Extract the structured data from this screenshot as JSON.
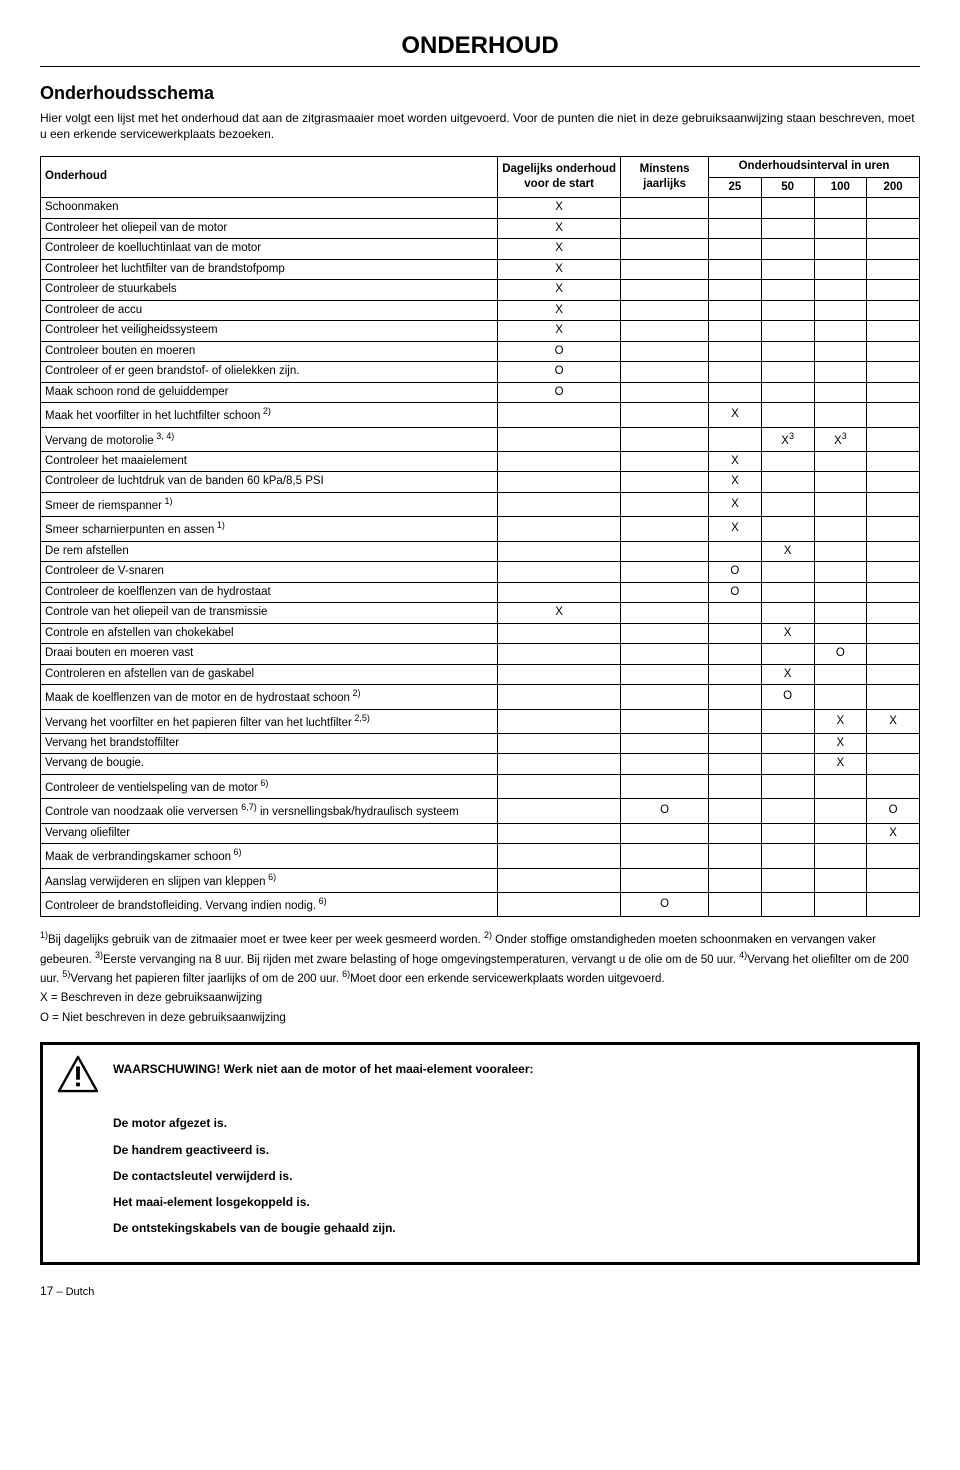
{
  "page": {
    "title": "ONDERHOUD",
    "section": "Onderhoudsschema",
    "intro": "Hier volgt een lijst met het onderhoud dat aan de zitgrasmaaier moet worden uitgevoerd. Voor de punten die niet in deze gebruiksaanwijzing staan beschreven, moet u een erkende servicewerkplaats bezoeken."
  },
  "table": {
    "headers": {
      "col1": "Onderhoud",
      "col2": "Dagelijks onderhoud voor de start",
      "col3": "Minstens jaarlijks",
      "col4": "Onderhoudsinterval in uren",
      "int25": "25",
      "int50": "50",
      "int100": "100",
      "int200": "200"
    },
    "rows": [
      {
        "name": "Schoonmaken",
        "daily": "X",
        "yearly": "",
        "i25": "",
        "i50": "",
        "i100": "",
        "i200": ""
      },
      {
        "name": "Controleer het oliepeil van de motor",
        "daily": "X",
        "yearly": "",
        "i25": "",
        "i50": "",
        "i100": "",
        "i200": ""
      },
      {
        "name": "Controleer de koelluchtinlaat van de motor",
        "daily": "X",
        "yearly": "",
        "i25": "",
        "i50": "",
        "i100": "",
        "i200": ""
      },
      {
        "name": "Controleer het luchtfilter van de brandstofpomp",
        "daily": "X",
        "yearly": "",
        "i25": "",
        "i50": "",
        "i100": "",
        "i200": ""
      },
      {
        "name": "Controleer de stuurkabels",
        "daily": "X",
        "yearly": "",
        "i25": "",
        "i50": "",
        "i100": "",
        "i200": ""
      },
      {
        "name": "Controleer de accu",
        "daily": "X",
        "yearly": "",
        "i25": "",
        "i50": "",
        "i100": "",
        "i200": ""
      },
      {
        "name": "Controleer het veiligheidssysteem",
        "daily": "X",
        "yearly": "",
        "i25": "",
        "i50": "",
        "i100": "",
        "i200": ""
      },
      {
        "name": "Controleer bouten en moeren",
        "daily": "O",
        "yearly": "",
        "i25": "",
        "i50": "",
        "i100": "",
        "i200": ""
      },
      {
        "name": "Controleer of er geen brandstof- of olielekken zijn.",
        "daily": "O",
        "yearly": "",
        "i25": "",
        "i50": "",
        "i100": "",
        "i200": ""
      },
      {
        "name": "Maak schoon rond de geluiddemper",
        "daily": "O",
        "yearly": "",
        "i25": "",
        "i50": "",
        "i100": "",
        "i200": ""
      },
      {
        "name": "Maak het voorfilter in het luchtfilter schoon",
        "sup": "2)",
        "daily": "",
        "yearly": "",
        "i25": "X",
        "i50": "",
        "i100": "",
        "i200": ""
      },
      {
        "name": "Vervang de motorolie",
        "sup": "3, 4)",
        "daily": "",
        "yearly": "",
        "i25": "",
        "i50": "X",
        "i50sup": "3",
        "i100": "X",
        "i100sup": "3",
        "i200": ""
      },
      {
        "name": "Controleer het maaielement",
        "daily": "",
        "yearly": "",
        "i25": "X",
        "i50": "",
        "i100": "",
        "i200": ""
      },
      {
        "name": "Controleer de luchtdruk van de banden 60 kPa/8,5 PSI",
        "daily": "",
        "yearly": "",
        "i25": "X",
        "i50": "",
        "i100": "",
        "i200": ""
      },
      {
        "name": "Smeer de riemspanner",
        "sup": "1)",
        "daily": "",
        "yearly": "",
        "i25": "X",
        "i50": "",
        "i100": "",
        "i200": ""
      },
      {
        "name": "Smeer scharnierpunten en assen",
        "sup": "1)",
        "daily": "",
        "yearly": "",
        "i25": "X",
        "i50": "",
        "i100": "",
        "i200": ""
      },
      {
        "name": "De rem afstellen",
        "daily": "",
        "yearly": "",
        "i25": "",
        "i50": "X",
        "i100": "",
        "i200": ""
      },
      {
        "name": "Controleer de V-snaren",
        "daily": "",
        "yearly": "",
        "i25": "O",
        "i50": "",
        "i100": "",
        "i200": ""
      },
      {
        "name": "Controleer de koelflenzen van de hydrostaat",
        "daily": "",
        "yearly": "",
        "i25": "O",
        "i50": "",
        "i100": "",
        "i200": ""
      },
      {
        "name": "Controle van het oliepeil van de transmissie",
        "daily": "X",
        "yearly": "",
        "i25": "",
        "i50": "",
        "i100": "",
        "i200": ""
      },
      {
        "name": "Controle en afstellen van chokekabel",
        "daily": "",
        "yearly": "",
        "i25": "",
        "i50": "X",
        "i100": "",
        "i200": ""
      },
      {
        "name": "Draai bouten en moeren vast",
        "daily": "",
        "yearly": "",
        "i25": "",
        "i50": "",
        "i100": "O",
        "i200": ""
      },
      {
        "name": "Controleren en afstellen van de gaskabel",
        "daily": "",
        "yearly": "",
        "i25": "",
        "i50": "X",
        "i100": "",
        "i200": ""
      },
      {
        "name": "Maak de koelflenzen van de motor en de hydrostaat schoon",
        "sup": "2)",
        "daily": "",
        "yearly": "",
        "i25": "",
        "i50": "O",
        "i100": "",
        "i200": ""
      },
      {
        "name": "Vervang het voorfilter en het papieren filter van het luchtfilter",
        "sup": "2,5)",
        "daily": "",
        "yearly": "",
        "i25": "",
        "i50": "",
        "i100": "X",
        "i200": "X"
      },
      {
        "name": "Vervang het brandstoffilter",
        "daily": "",
        "yearly": "",
        "i25": "",
        "i50": "",
        "i100": "X",
        "i200": ""
      },
      {
        "name": "Vervang de bougie.",
        "daily": "",
        "yearly": "",
        "i25": "",
        "i50": "",
        "i100": "X",
        "i200": ""
      },
      {
        "name": "Controleer de ventielspeling van de motor",
        "sup": "6)",
        "daily": "",
        "yearly": "",
        "i25": "",
        "i50": "",
        "i100": "",
        "i200": ""
      },
      {
        "name": "Controle van noodzaak olie verversen 6,7) in versnellingsbak/hydraulisch systeem",
        "name_html": true,
        "sup": "",
        "daily": "",
        "yearly": "O",
        "i25": "",
        "i50": "",
        "i100": "",
        "i200": "O"
      },
      {
        "name": "Vervang oliefilter",
        "daily": "",
        "yearly": "",
        "i25": "",
        "i50": "",
        "i100": "",
        "i200": "X"
      },
      {
        "name": "Maak de verbrandingskamer schoon",
        "sup": "6)",
        "daily": "",
        "yearly": "",
        "i25": "",
        "i50": "",
        "i100": "",
        "i200": ""
      },
      {
        "name": "Aanslag verwijderen en slijpen van kleppen",
        "sup": "6)",
        "daily": "",
        "yearly": "",
        "i25": "",
        "i50": "",
        "i100": "",
        "i200": ""
      },
      {
        "name": "Controleer de brandstofleiding. Vervang indien nodig.",
        "sup": "6)",
        "daily": "",
        "yearly": "O",
        "i25": "",
        "i50": "",
        "i100": "",
        "i200": ""
      }
    ]
  },
  "footnotes": {
    "text1": "1)Bij dagelijks gebruik van de zitmaaier moet er twee keer per week gesmeerd worden. 2) Onder stoffige omstandigheden moeten schoonmaken en vervangen vaker gebeuren. 3)Eerste vervanging na 8 uur. Bij rijden met zware belasting of hoge omgevingstemperaturen, vervangt u de olie om de 50 uur. 4)Vervang het oliefilter om de 200 uur. 5)Vervang het papieren filter jaarlijks of om de 200 uur. 6)Moet door een erkende servicewerkplaats worden uitgevoerd.",
    "line_x": "X = Beschreven in deze gebruiksaanwijzing",
    "line_o": "O = Niet beschreven in deze gebruiksaanwijzing"
  },
  "warning": {
    "title": "WAARSCHUWING! Werk niet aan de motor of het maai-element vooraleer:",
    "items": [
      "De motor afgezet is.",
      "De handrem geactiveerd is.",
      "De contactsleutel verwijderd is.",
      "Het maai-element losgekoppeld is.",
      "De ontstekingskabels van de bougie gehaald zijn."
    ]
  },
  "footer": {
    "pagenum": "17",
    "lang": "– Dutch"
  }
}
